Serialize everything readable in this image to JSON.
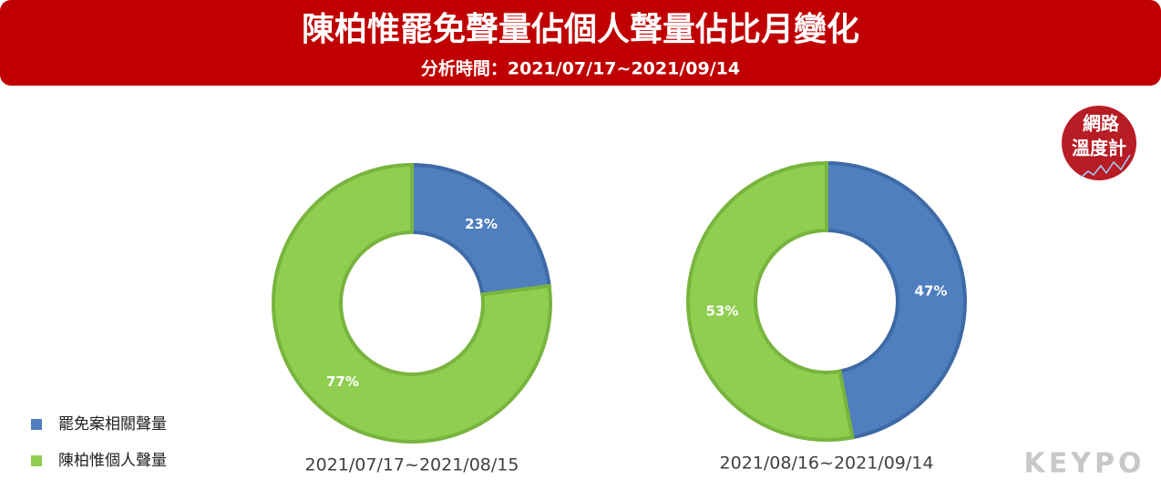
{
  "header": {
    "title": "陳柏惟罷免聲量佔個人聲量佔比月變化",
    "subtitle": "分析時間：2021/07/17~2021/09/14"
  },
  "chart_data": [
    {
      "type": "donut",
      "title": "2021/07/17~2021/08/15",
      "categories": [
        "罷免案相關聲量",
        "陳柏惟個人聲量"
      ],
      "values": [
        23,
        77
      ],
      "value_labels": [
        "23%",
        "77%"
      ],
      "colors": [
        "#4f7fbf",
        "#8fce4f"
      ]
    },
    {
      "type": "donut",
      "title": "2021/08/16~2021/09/14",
      "categories": [
        "罷免案相關聲量",
        "陳柏惟個人聲量"
      ],
      "values": [
        47,
        53
      ],
      "value_labels": [
        "47%",
        "53%"
      ],
      "colors": [
        "#4f7fbf",
        "#8fce4f"
      ]
    }
  ],
  "badge": {
    "line1": "網路",
    "line2": "溫度計"
  },
  "brand": "KEYPO"
}
